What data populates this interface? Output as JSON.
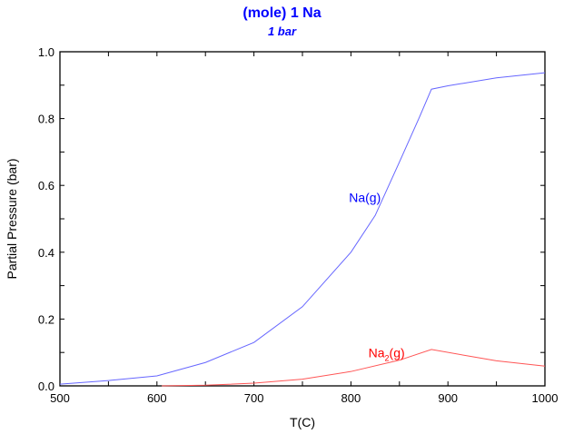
{
  "chart_data": {
    "type": "line",
    "title": "(mole) 1 Na",
    "subtitle": "1 bar",
    "xlabel": "T(C)",
    "ylabel": "Partial Pressure (bar)",
    "xlim": [
      500,
      1000
    ],
    "ylim": [
      0,
      1.0
    ],
    "xticks": [
      "500",
      "600",
      "700",
      "800",
      "900",
      "1000"
    ],
    "yticks": [
      "0.0",
      "0.2",
      "0.4",
      "0.6",
      "0.8",
      "1.0"
    ],
    "grid": false,
    "colors": {
      "title": "#0000ff",
      "Na(g)": "#6666ff",
      "Na2(g)": "#ff5555"
    },
    "series": [
      {
        "name": "Na(g)",
        "label_main": "Na(g)",
        "label_sub": "",
        "label_at": [
          798,
          0.55
        ],
        "x": [
          500,
          550,
          600,
          650,
          700,
          750,
          800,
          825,
          850,
          870,
          883,
          900,
          950,
          1000
        ],
        "y": [
          0.005,
          0.016,
          0.03,
          0.07,
          0.13,
          0.237,
          0.4,
          0.51,
          0.67,
          0.8,
          0.888,
          0.898,
          0.922,
          0.937
        ]
      },
      {
        "name": "Na2(g)",
        "label_main": "Na",
        "label_sub": "2",
        "label_suffix": "(g)",
        "label_at": [
          818,
          0.085
        ],
        "x": [
          605,
          650,
          700,
          750,
          800,
          850,
          883,
          920,
          950,
          1000
        ],
        "y": [
          0.0,
          0.002,
          0.008,
          0.02,
          0.043,
          0.077,
          0.109,
          0.09,
          0.075,
          0.059
        ]
      }
    ]
  }
}
